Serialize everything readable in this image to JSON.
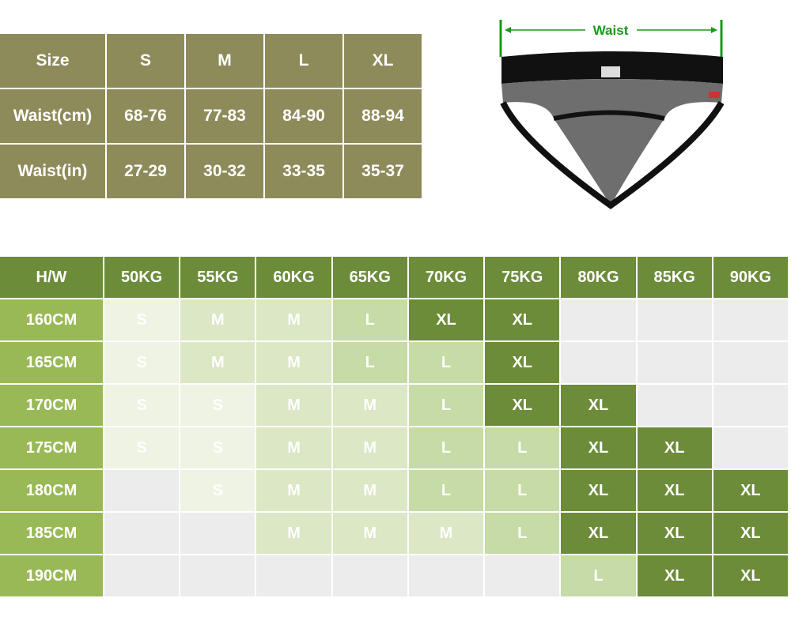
{
  "size_table": {
    "header": [
      "Size",
      "S",
      "M",
      "L",
      "XL"
    ],
    "rows": [
      [
        "Waist(cm)",
        "68-76",
        "77-83",
        "84-90",
        "88-94"
      ],
      [
        "Waist(in)",
        "27-29",
        "30-32",
        "33-35",
        "35-37"
      ]
    ]
  },
  "illustration": {
    "label": "Waist"
  },
  "fit_table": {
    "header": [
      "H/W",
      "50KG",
      "55KG",
      "60KG",
      "65KG",
      "70KG",
      "75KG",
      "80KG",
      "85KG",
      "90KG"
    ],
    "rows": [
      [
        "160CM",
        "S",
        "M",
        "M",
        "L",
        "XL",
        "XL",
        null,
        null,
        null
      ],
      [
        "165CM",
        "S",
        "M",
        "M",
        "L",
        "L",
        "XL",
        null,
        null,
        null
      ],
      [
        "170CM",
        "S",
        "S",
        "M",
        "M",
        "L",
        "XL",
        "XL",
        null,
        null
      ],
      [
        "175CM",
        "S",
        "S",
        "M",
        "M",
        "L",
        "L",
        "XL",
        "XL",
        null
      ],
      [
        "180CM",
        null,
        "S",
        "M",
        "M",
        "L",
        "L",
        "XL",
        "XL",
        "XL"
      ],
      [
        "185CM",
        null,
        null,
        "M",
        "M",
        "M",
        "L",
        "XL",
        "XL",
        "XL"
      ],
      [
        "190CM",
        null,
        null,
        null,
        null,
        null,
        null,
        "L",
        "XL",
        "XL"
      ]
    ]
  }
}
